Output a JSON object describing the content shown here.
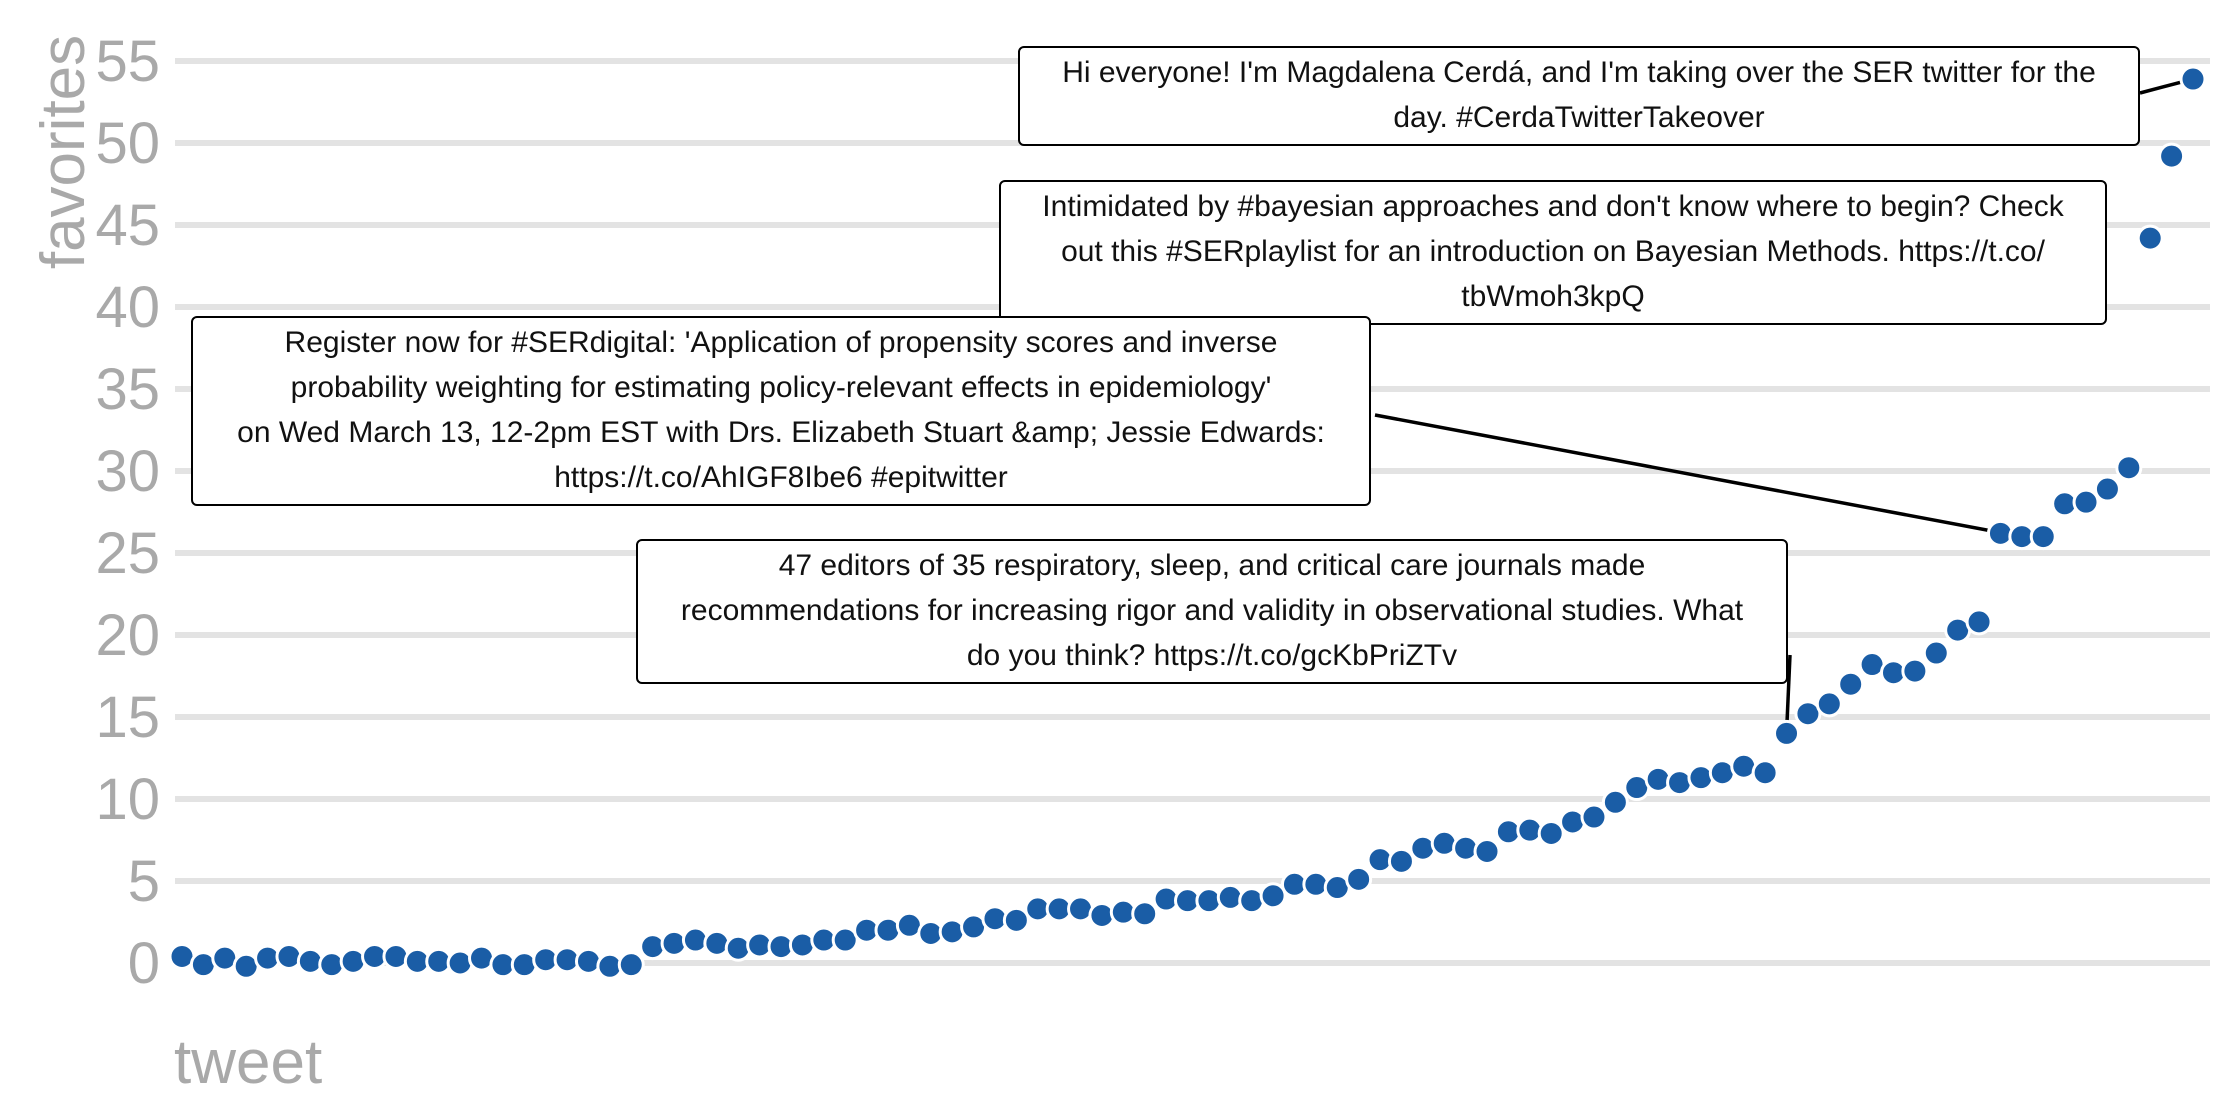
{
  "chart_data": {
    "type": "scatter",
    "xlabel": "tweet",
    "ylabel": "favorites",
    "ylim": [
      0,
      55
    ],
    "yticks": [
      0,
      5,
      10,
      15,
      20,
      25,
      30,
      35,
      40,
      45,
      50,
      55
    ],
    "grid": "horizontal",
    "point_color": "#1a5da6",
    "series": [
      {
        "values": [
          0.4,
          -0.1,
          0.3,
          -0.2,
          0.3,
          0.4,
          0.1,
          -0.1,
          0.1,
          0.4,
          0.4,
          0.1,
          0.1,
          0.0,
          0.3,
          -0.1,
          -0.1,
          0.2,
          0.2,
          0.1,
          -0.2,
          -0.1,
          1.0,
          1.2,
          1.4,
          1.2,
          0.9,
          1.1,
          1.0,
          1.1,
          1.4,
          1.4,
          2.0,
          2.0,
          2.3,
          1.8,
          1.9,
          2.2,
          2.7,
          2.6,
          3.3,
          3.3,
          3.3,
          2.9,
          3.1,
          3.0,
          3.9,
          3.8,
          3.8,
          4.0,
          3.8,
          4.1,
          4.8,
          4.8,
          4.6,
          5.1,
          6.3,
          6.2,
          7.0,
          7.3,
          7.0,
          6.8,
          8.0,
          8.1,
          7.9,
          8.6,
          8.9,
          9.8,
          10.7,
          11.2,
          11.0,
          11.3,
          11.6,
          12.0,
          11.6,
          14.0,
          15.2,
          15.8,
          17.0,
          18.2,
          17.7,
          17.8,
          18.9,
          20.3,
          20.8,
          26.2,
          26.0,
          26.0,
          28.0,
          28.1,
          28.9,
          30.2,
          44.2,
          49.2,
          53.9
        ]
      }
    ],
    "annotations": [
      {
        "text": "Hi everyone! I'm Magdalena Cerdá, and I'm taking over the SER twitter for the\nday. #CerdaTwitterTakeover",
        "point_index": 94
      },
      {
        "text": "Intimidated by #bayesian approaches and don't know where to begin? Check\nout this #SERplaylist for an introduction on Bayesian Methods. https://t.co/\ntbWmoh3kpQ",
        "point_index": 92
      },
      {
        "text": "Register now for #SERdigital: 'Application of propensity scores and inverse\nprobability weighting for estimating policy-relevant effects in epidemiology'\non Wed March 13, 12-2pm EST with Drs. Elizabeth Stuart &amp; Jessie Edwards:\nhttps://t.co/AhIGF8Ibe6 #epitwitter",
        "point_index": 86
      },
      {
        "text": "47 editors of 35 respiratory, sleep, and critical care journals made\nrecommendations for increasing rigor and validity in observational studies. What\ndo you think? https://t.co/gcKbPriZTv",
        "point_index": 75
      }
    ]
  }
}
